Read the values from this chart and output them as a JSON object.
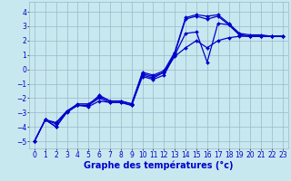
{
  "xlabel": "Graphe des températures (°c)",
  "background_color": "#c8e8f0",
  "grid_color": "#9ab8c8",
  "line_color": "#0000cc",
  "xlim": [
    -0.5,
    23.5
  ],
  "ylim": [
    -5.5,
    4.7
  ],
  "xticks": [
    0,
    1,
    2,
    3,
    4,
    5,
    6,
    7,
    8,
    9,
    10,
    11,
    12,
    13,
    14,
    15,
    16,
    17,
    18,
    19,
    20,
    21,
    22,
    23
  ],
  "yticks": [
    -5,
    -4,
    -3,
    -2,
    -1,
    0,
    1,
    2,
    3,
    4
  ],
  "lines": [
    {
      "x": [
        0,
        1,
        2,
        3,
        4,
        5,
        6,
        7,
        8,
        9,
        10,
        11,
        12,
        13,
        14,
        15,
        16,
        17,
        18,
        19,
        20,
        21,
        22,
        23
      ],
      "y": [
        -5.0,
        -3.5,
        -4.0,
        -3.0,
        -2.5,
        -2.6,
        -2.2,
        -2.3,
        -2.3,
        -2.5,
        -0.5,
        -0.7,
        -0.4,
        1.0,
        2.5,
        2.6,
        0.5,
        3.2,
        3.1,
        2.4,
        2.3,
        2.3,
        2.3,
        2.3
      ]
    },
    {
      "x": [
        0,
        1,
        2,
        3,
        4,
        5,
        6,
        7,
        8,
        9,
        10,
        11,
        12,
        13,
        14,
        15,
        16,
        17,
        18,
        19,
        20,
        21,
        22,
        23
      ],
      "y": [
        -5.0,
        -3.5,
        -3.8,
        -2.9,
        -2.5,
        -2.5,
        -1.8,
        -2.2,
        -2.2,
        -2.4,
        -0.3,
        -0.5,
        -0.2,
        1.1,
        3.5,
        3.7,
        3.5,
        3.7,
        3.1,
        2.4,
        2.3,
        2.3,
        2.3,
        2.3
      ]
    },
    {
      "x": [
        0,
        1,
        2,
        3,
        4,
        5,
        6,
        7,
        8,
        9,
        10,
        11,
        12,
        13,
        14,
        15,
        16,
        17,
        18,
        19,
        20,
        21,
        22,
        23
      ],
      "y": [
        -5.0,
        -3.5,
        -4.0,
        -2.9,
        -2.4,
        -2.4,
        -1.9,
        -2.2,
        -2.2,
        -2.4,
        -0.2,
        -0.4,
        -0.1,
        1.2,
        3.6,
        3.8,
        3.7,
        3.8,
        3.2,
        2.5,
        2.4,
        2.4,
        2.3,
        2.3
      ]
    },
    {
      "x": [
        0,
        1,
        2,
        3,
        4,
        5,
        6,
        7,
        8,
        9,
        10,
        11,
        12,
        13,
        14,
        15,
        16,
        17,
        18,
        19,
        20,
        21,
        22,
        23
      ],
      "y": [
        -5.0,
        -3.5,
        -3.7,
        -2.9,
        -2.5,
        -2.5,
        -2.0,
        -2.3,
        -2.3,
        -2.5,
        -0.4,
        -0.6,
        -0.2,
        0.9,
        1.5,
        2.0,
        1.5,
        2.0,
        2.2,
        2.3,
        2.3,
        2.3,
        2.3,
        2.3
      ]
    }
  ],
  "marker": "D",
  "markersize": 2.0,
  "linewidth": 0.9,
  "xlabel_fontsize": 7,
  "tick_fontsize": 5.5
}
